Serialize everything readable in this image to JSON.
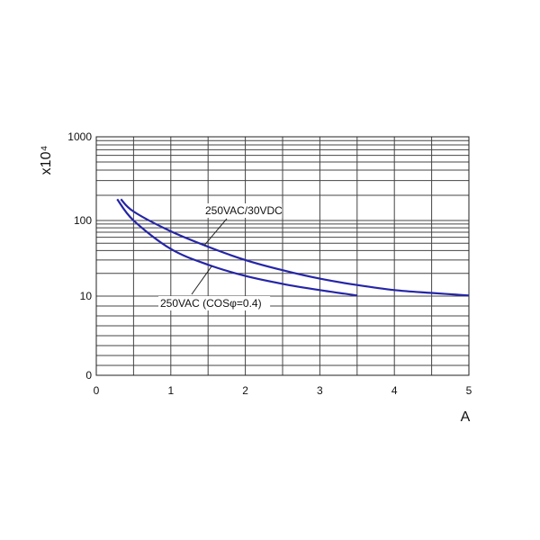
{
  "chart_data": {
    "type": "line",
    "title": "",
    "xlabel": "A",
    "ylabel": "x10⁴",
    "xlim": [
      0,
      5
    ],
    "x_ticks": [
      "0",
      "1",
      "2",
      "3",
      "4",
      "5"
    ],
    "y_ticks": [
      "0",
      "10",
      "100",
      "1000"
    ],
    "y_scale": "log",
    "grid": true,
    "colors": {
      "curve": "#2525a8",
      "grid": "#444444"
    },
    "series": [
      {
        "name": "250VAC/30VDC",
        "points": [
          [
            0.33,
            180
          ],
          [
            0.5,
            128
          ],
          [
            1,
            72
          ],
          [
            1.5,
            45
          ],
          [
            2,
            30
          ],
          [
            2.5,
            22
          ],
          [
            3,
            17
          ],
          [
            3.5,
            14
          ],
          [
            4,
            12
          ],
          [
            4.5,
            11
          ],
          [
            5,
            10.2
          ]
        ]
      },
      {
        "name": "250VAC (COSφ=0.4)",
        "points": [
          [
            0.28,
            180
          ],
          [
            0.5,
            100
          ],
          [
            1,
            42
          ],
          [
            1.5,
            26
          ],
          [
            2,
            18.5
          ],
          [
            2.5,
            14.5
          ],
          [
            3,
            12
          ],
          [
            3.5,
            10.2
          ]
        ]
      }
    ],
    "annotations": [
      {
        "text": "250VAC/30VDC",
        "series": 0
      },
      {
        "text": "250VAC (COSφ=0.4)",
        "series": 1
      }
    ]
  }
}
